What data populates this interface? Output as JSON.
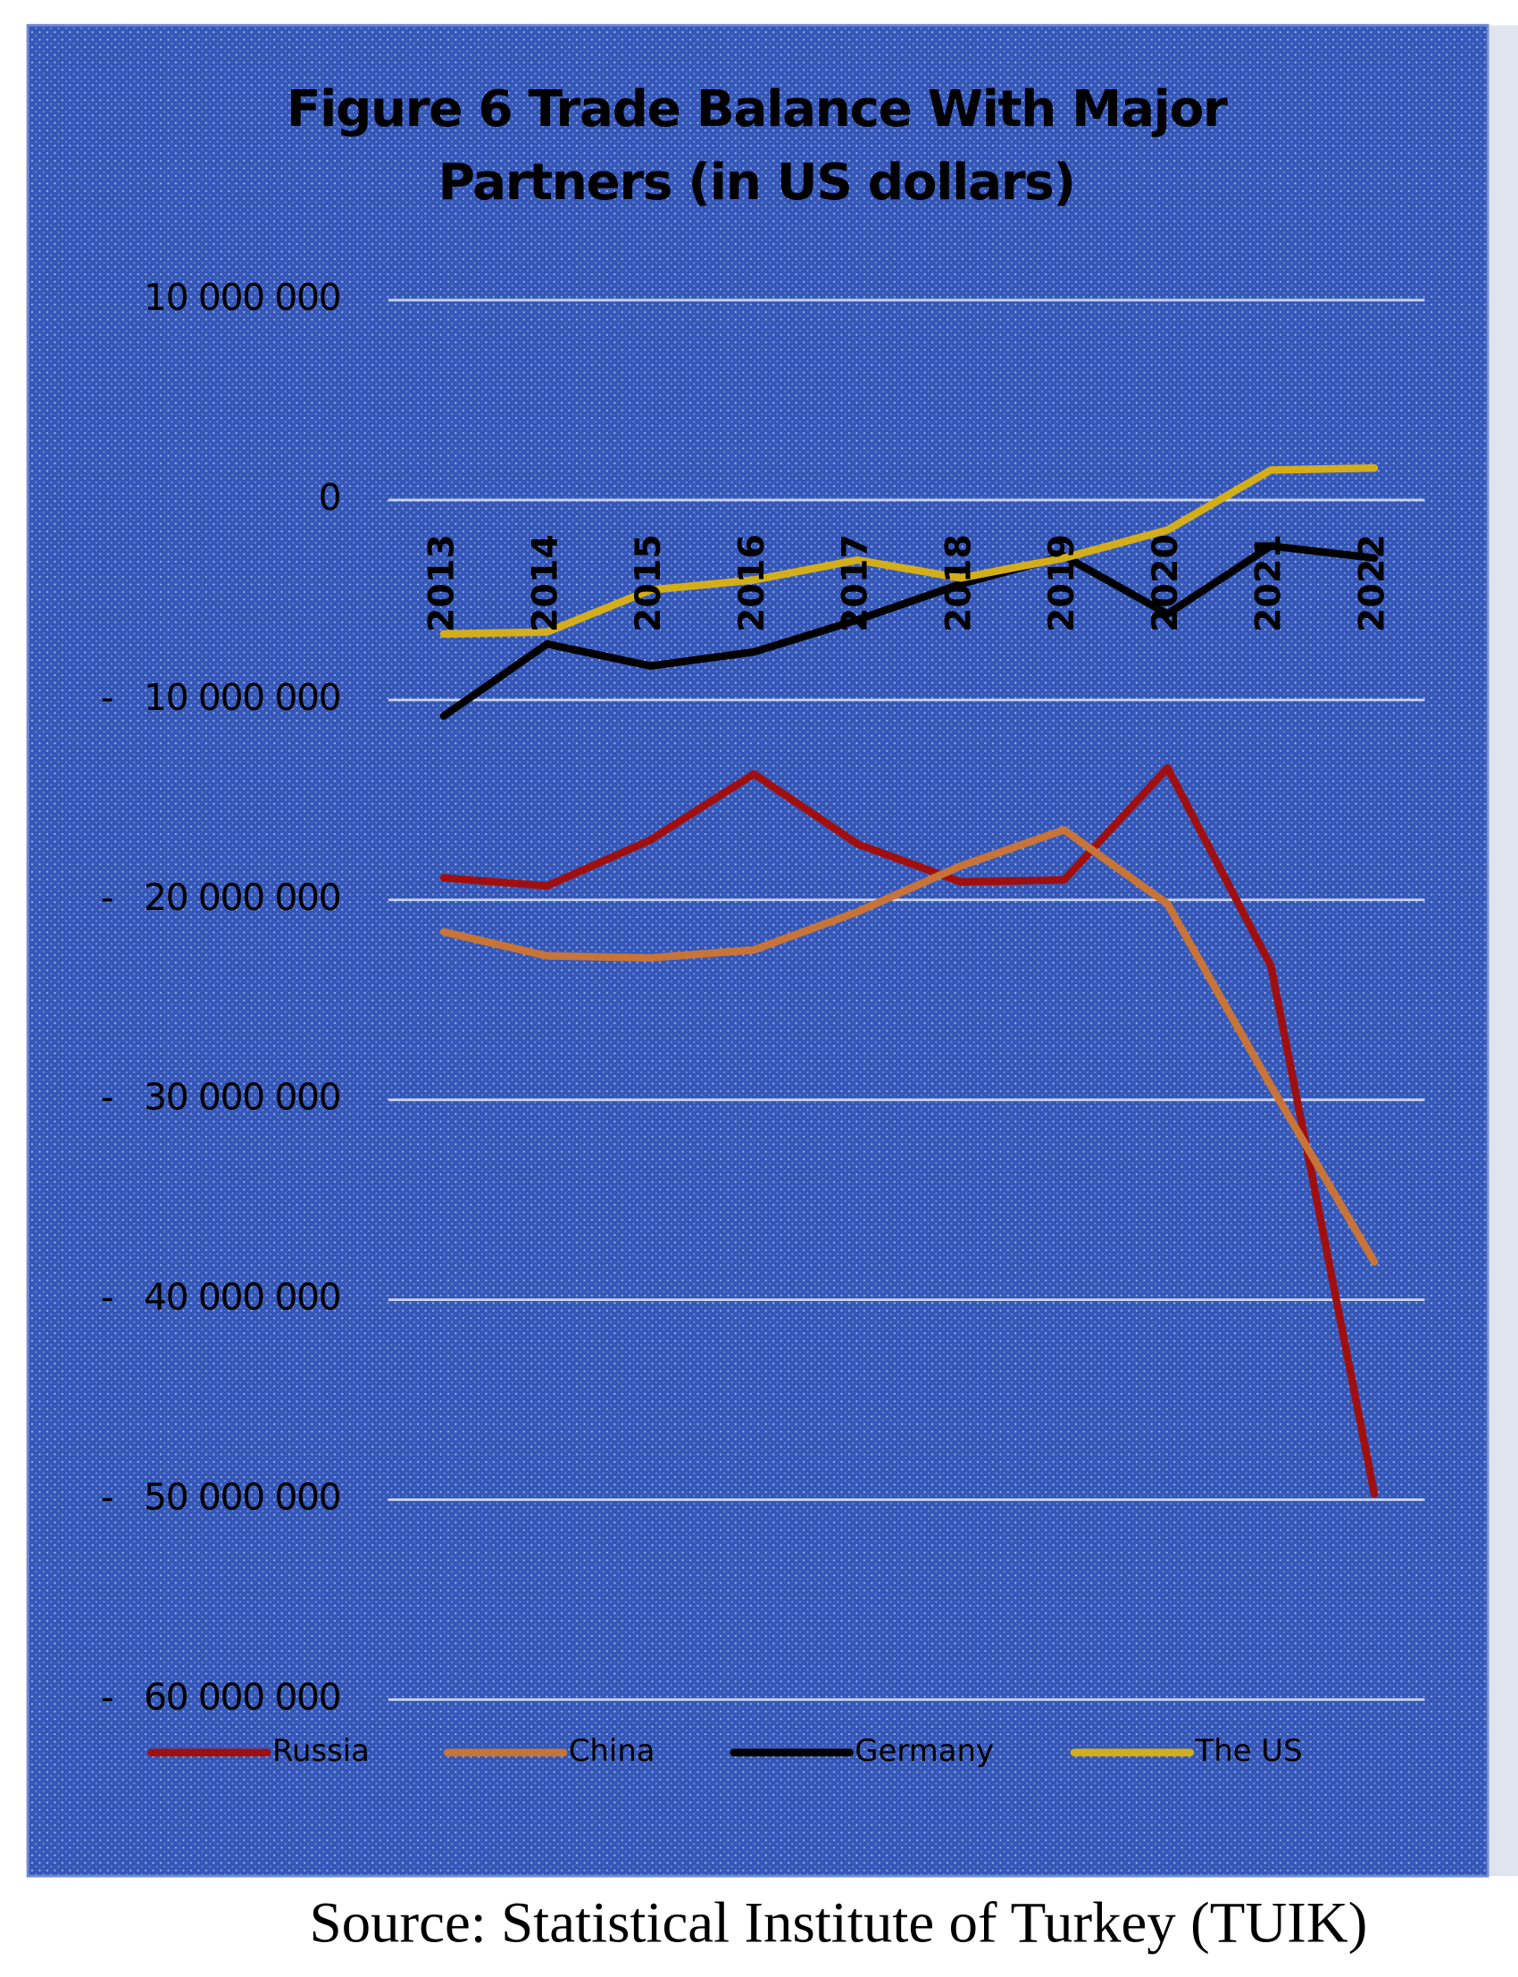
{
  "chart_data": {
    "type": "line",
    "title": "Figure 6 Trade Balance With Major Partners (in US dollars)",
    "source": "Source: Statistical Institute of Turkey (TUIK)",
    "categories": [
      "2013",
      "2014",
      "2015",
      "2016",
      "2017",
      "2018",
      "2019",
      "2020",
      "2021",
      "2022"
    ],
    "series": [
      {
        "name": "Russia",
        "color": "#a00f0f",
        "values": [
          -18900000,
          -19300000,
          -17000000,
          -13700000,
          -17200000,
          -19100000,
          -19000000,
          -13400000,
          -23300000,
          -49700000
        ]
      },
      {
        "name": "China",
        "color": "#c87438",
        "values": [
          -21600000,
          -22800000,
          -22900000,
          -22500000,
          -20600000,
          -18300000,
          -16500000,
          -20200000,
          -29300000,
          -38100000
        ]
      },
      {
        "name": "Germany",
        "color": "#000000",
        "values": [
          -10800000,
          -7200000,
          -8300000,
          -7600000,
          -6000000,
          -4200000,
          -2800000,
          -5700000,
          -2300000,
          -2900000
        ]
      },
      {
        "name": "The US",
        "color": "#d4ae1a",
        "values": [
          -6700000,
          -6600000,
          -4500000,
          -4000000,
          -3000000,
          -3900000,
          -2900000,
          -1500000,
          1500000,
          1600000
        ]
      }
    ],
    "ylim": [
      -60000000,
      10000000
    ],
    "yticks": [
      {
        "value": 10000000,
        "label": "10 000 000"
      },
      0,
      {
        "value": -10000000,
        "label": "-   10 000 000"
      },
      {
        "value": -20000000,
        "label": "-   20 000 000"
      },
      {
        "value": -30000000,
        "label": "-   30 000 000"
      },
      {
        "value": -40000000,
        "label": "-   40 000 000"
      },
      {
        "value": -50000000,
        "label": "-   50 000 000"
      },
      {
        "value": -60000000,
        "label": "-   60 000 000"
      }
    ],
    "grid": true,
    "legend": "bottom"
  }
}
